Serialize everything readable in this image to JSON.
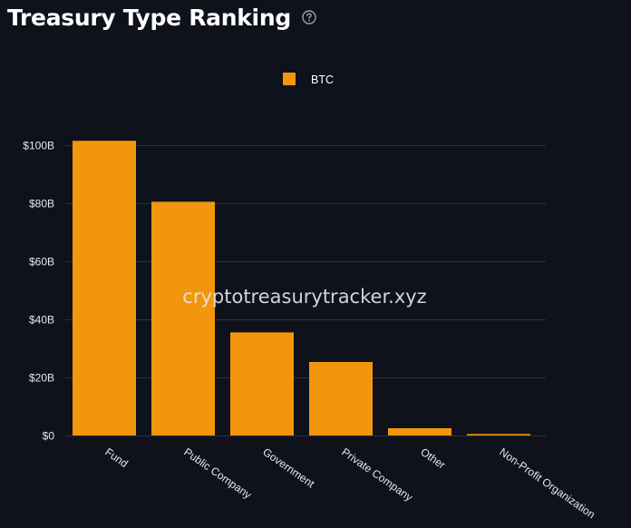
{
  "header": {
    "title": "Treasury Type Ranking",
    "help_icon": "help-circle-icon"
  },
  "watermark": "cryptotreasurytracker.xyz",
  "colors": {
    "background": "#0f121b",
    "bar": "#f2960d",
    "grid": "#2c313d",
    "text": "#e6e7ea"
  },
  "chart_data": {
    "type": "bar",
    "title": "Treasury Type Ranking",
    "categories": [
      "Fund",
      "Public Company",
      "Government",
      "Private Company",
      "Other",
      "Non-Profit Organization"
    ],
    "series": [
      {
        "name": "BTC",
        "values": [
          101.5,
          80.5,
          35.5,
          25.3,
          2.5,
          0.5
        ]
      }
    ],
    "y_ticks": [
      0,
      20,
      40,
      60,
      80,
      100
    ],
    "y_tick_labels": [
      "$0",
      "$20B",
      "$40B",
      "$60B",
      "$80B",
      "$100B"
    ],
    "ylim": [
      0,
      100
    ],
    "xlabel": "",
    "ylabel": "",
    "legend_position": "top-center",
    "grid": true
  }
}
